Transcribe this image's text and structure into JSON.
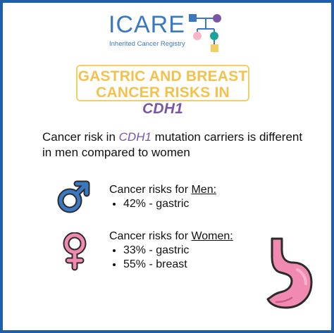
{
  "logo": {
    "word": "ICARE",
    "subtitle": "Inherited Cancer Registry",
    "colors": {
      "text": "#3a78c2",
      "purple": "#7a55a8",
      "pink": "#f4b6c8",
      "teal": "#1aa39a",
      "yellow": "#f3cf63"
    }
  },
  "title": {
    "line1": "GASTRIC AND BREAST",
    "line2_prefix": "CANCER RISKS IN ",
    "gene": "CDH1"
  },
  "intro": {
    "prefix": "Cancer risk in ",
    "gene": "CDH1",
    "suffix": " mutation carriers is different in men compared to women"
  },
  "men": {
    "heading_prefix": "Cancer risks for ",
    "heading_group": "Men:",
    "items": [
      "42% - gastric"
    ],
    "icon": "male-symbol-icon"
  },
  "women": {
    "heading_prefix": "Cancer risks for ",
    "heading_group": "Women:",
    "items": [
      "33% - gastric",
      "55% - breast"
    ],
    "icon": "female-symbol-icon"
  },
  "decor": {
    "stomach_icon": "stomach-icon",
    "border_color": "#1f5fa8",
    "title_color": "#f3c24d"
  }
}
